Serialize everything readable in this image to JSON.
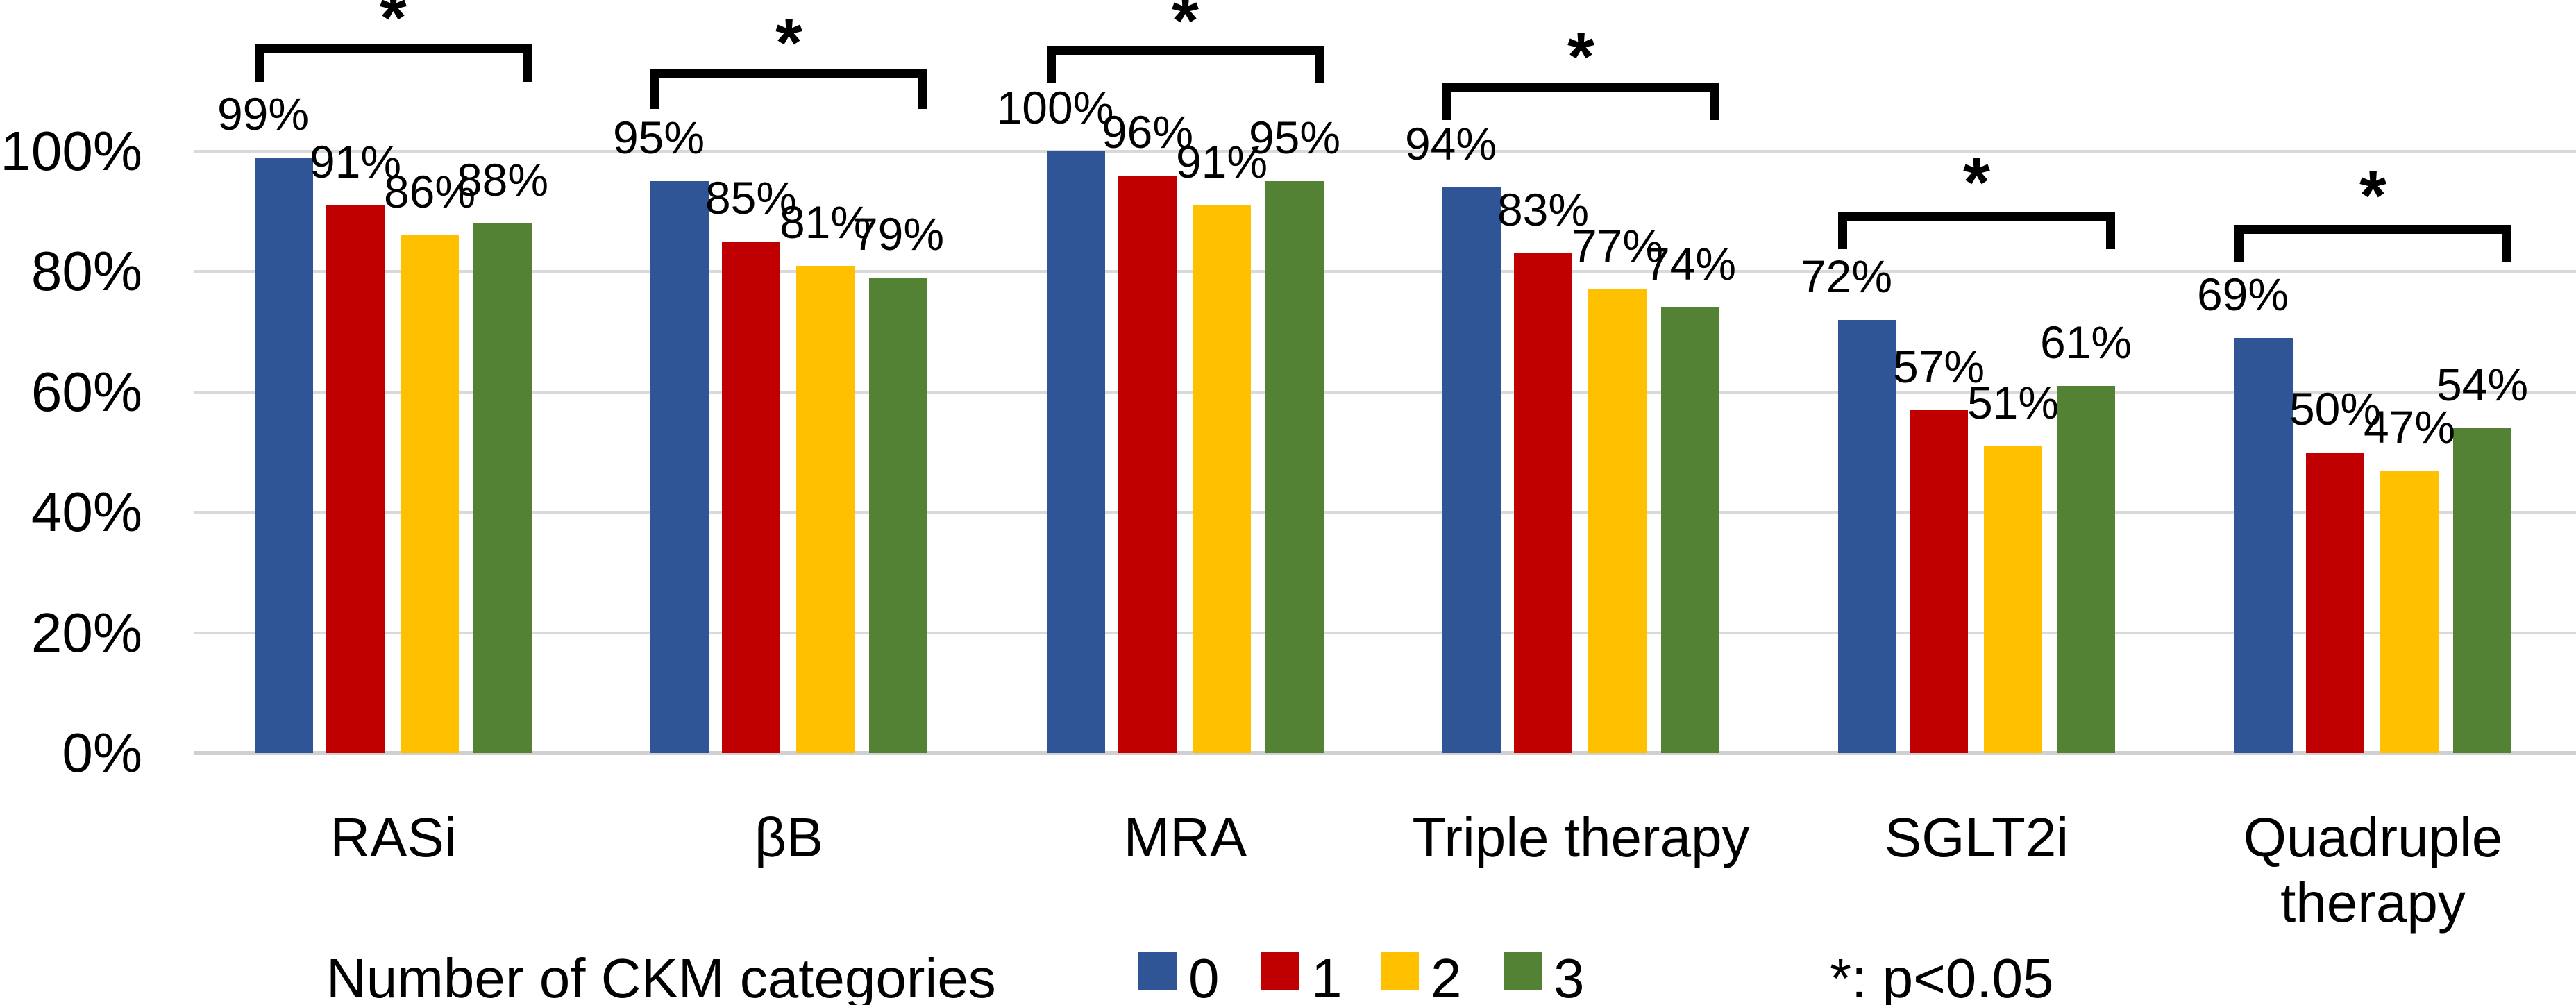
{
  "chart_data": {
    "type": "bar",
    "title": "",
    "categories": [
      "RASi",
      "βB",
      "MRA",
      "Triple therapy",
      "SGLT2i",
      "Quadruple\ntherapy"
    ],
    "series": [
      {
        "name": "0",
        "color": "#2F5597",
        "values": [
          99,
          95,
          100,
          94,
          72,
          69
        ]
      },
      {
        "name": "1",
        "color": "#C00000",
        "values": [
          91,
          85,
          96,
          83,
          57,
          50
        ]
      },
      {
        "name": "2",
        "color": "#FFC000",
        "values": [
          86,
          81,
          91,
          77,
          51,
          47
        ]
      },
      {
        "name": "3",
        "color": "#548235",
        "values": [
          88,
          79,
          95,
          74,
          61,
          54
        ]
      }
    ],
    "value_labels": [
      [
        "99%",
        "95%",
        "100%",
        "94%",
        "72%",
        "69%"
      ],
      [
        "91%",
        "85%",
        "96%",
        "83%",
        "57%",
        "50%"
      ],
      [
        "86%",
        "81%",
        "91%",
        "77%",
        "51%",
        "47%"
      ],
      [
        "88%",
        "79%",
        "95%",
        "74%",
        "61%",
        "54%"
      ]
    ],
    "xlabel": "",
    "ylabel": "",
    "ylim": [
      0,
      100
    ],
    "grid": true,
    "y_axis": {
      "tick_labels": [
        "0%",
        "20%",
        "40%",
        "60%",
        "80%",
        "100%"
      ],
      "tick_values": [
        0,
        20,
        40,
        60,
        80,
        100
      ]
    },
    "legend": {
      "position": "bottom",
      "title": "Number of CKM categories",
      "items": [
        "0",
        "1",
        "2",
        "3"
      ]
    },
    "significance": {
      "symbol": "*",
      "note": "*: p<0.05",
      "significant_categories": [
        "RASi",
        "βB",
        "MRA",
        "Triple therapy",
        "SGLT2i",
        "Quadruple therapy"
      ]
    }
  },
  "colors": {
    "background": "#FFFFFF",
    "gridline": "#D9D9D9",
    "axis_line": "#D0D0D0",
    "bracket": "#000000",
    "text": "#000000"
  }
}
